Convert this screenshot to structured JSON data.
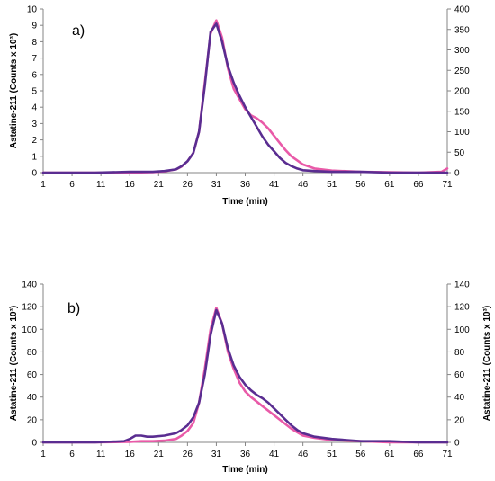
{
  "chart_data": [
    {
      "type": "line",
      "panel_label": "a)",
      "xlabel": "Time (min)",
      "ylabel": "Astatine-211 (Counts x 10³)",
      "y2label": "",
      "xlim": [
        1,
        71
      ],
      "xticks": [
        1,
        6,
        11,
        16,
        21,
        26,
        31,
        36,
        41,
        46,
        51,
        56,
        61,
        66,
        71
      ],
      "ylim": [
        0,
        10
      ],
      "yticks": [
        0,
        1,
        2,
        3,
        4,
        5,
        6,
        7,
        8,
        9,
        10
      ],
      "y2lim": [
        0,
        400
      ],
      "y2ticks": [
        0,
        50,
        100,
        150,
        200,
        250,
        300,
        350,
        400
      ],
      "grid": false,
      "series": [
        {
          "axis": "right",
          "color": "#e95aa8",
          "x": [
            1,
            10,
            16,
            20,
            22,
            24,
            25,
            26,
            27,
            28,
            29,
            30,
            31,
            32,
            33,
            34,
            35,
            36,
            37,
            38,
            39,
            40,
            41,
            42,
            43,
            44,
            45,
            46,
            48,
            51,
            56,
            61,
            66,
            70,
            71
          ],
          "values": [
            0,
            0,
            0,
            1,
            3,
            8,
            15,
            28,
            48,
            100,
            220,
            340,
            372,
            330,
            255,
            205,
            180,
            155,
            140,
            133,
            122,
            108,
            90,
            72,
            55,
            40,
            30,
            20,
            10,
            5,
            2,
            1,
            0,
            2,
            10
          ]
        },
        {
          "axis": "left",
          "color": "#5a2d91",
          "x": [
            1,
            10,
            16,
            20,
            22,
            24,
            25,
            26,
            27,
            28,
            29,
            30,
            31,
            32,
            33,
            34,
            35,
            36,
            37,
            38,
            39,
            40,
            41,
            42,
            43,
            44,
            45,
            46,
            48,
            51,
            56,
            61,
            66,
            71
          ],
          "values": [
            0,
            0,
            0.05,
            0.05,
            0.1,
            0.2,
            0.4,
            0.7,
            1.2,
            2.5,
            5.3,
            8.6,
            9.1,
            8.0,
            6.5,
            5.5,
            4.7,
            4.0,
            3.4,
            2.8,
            2.2,
            1.7,
            1.3,
            0.9,
            0.6,
            0.4,
            0.25,
            0.15,
            0.1,
            0.05,
            0.05,
            0,
            0,
            0
          ]
        }
      ]
    },
    {
      "type": "line",
      "panel_label": "b)",
      "xlabel": "Time (min)",
      "ylabel": "Astatine-211 (Counts x 10³)",
      "y2label": "Astatine-211 (Counts x 10³)",
      "xlim": [
        1,
        71
      ],
      "xticks": [
        1,
        6,
        11,
        16,
        21,
        26,
        31,
        36,
        41,
        46,
        51,
        56,
        61,
        66,
        71
      ],
      "ylim": [
        0,
        140
      ],
      "yticks": [
        0,
        20,
        40,
        60,
        80,
        100,
        120,
        140
      ],
      "y2lim": [
        0,
        140
      ],
      "y2ticks": [
        0,
        20,
        40,
        60,
        80,
        100,
        120,
        140
      ],
      "grid": false,
      "series": [
        {
          "axis": "right",
          "color": "#e95aa8",
          "x": [
            1,
            10,
            16,
            18,
            20,
            22,
            24,
            25,
            26,
            27,
            28,
            29,
            30,
            31,
            32,
            33,
            34,
            35,
            36,
            37,
            38,
            39,
            40,
            41,
            42,
            43,
            44,
            45,
            46,
            48,
            51,
            56,
            61,
            66,
            71
          ],
          "values": [
            0,
            0,
            0.5,
            1,
            1,
            1.5,
            3,
            6,
            10,
            17,
            35,
            65,
            100,
            119,
            105,
            80,
            65,
            53,
            45,
            40,
            36,
            32,
            28,
            24,
            20,
            16,
            12,
            9,
            6,
            4,
            2,
            1,
            0,
            0,
            0
          ]
        },
        {
          "axis": "left",
          "color": "#5a2d91",
          "x": [
            1,
            10,
            15,
            16,
            17,
            18,
            19,
            20,
            22,
            24,
            25,
            26,
            27,
            28,
            29,
            30,
            31,
            32,
            33,
            34,
            35,
            36,
            37,
            38,
            39,
            40,
            41,
            42,
            43,
            44,
            45,
            46,
            48,
            51,
            56,
            61,
            66,
            71
          ],
          "values": [
            0,
            0,
            1,
            3,
            6,
            6,
            5,
            5,
            6,
            8,
            11,
            15,
            22,
            35,
            60,
            95,
            117,
            105,
            83,
            68,
            58,
            51,
            46,
            42,
            39,
            35,
            30,
            25,
            20,
            15,
            11,
            8,
            5,
            3,
            1,
            1,
            0,
            0
          ]
        }
      ]
    }
  ]
}
